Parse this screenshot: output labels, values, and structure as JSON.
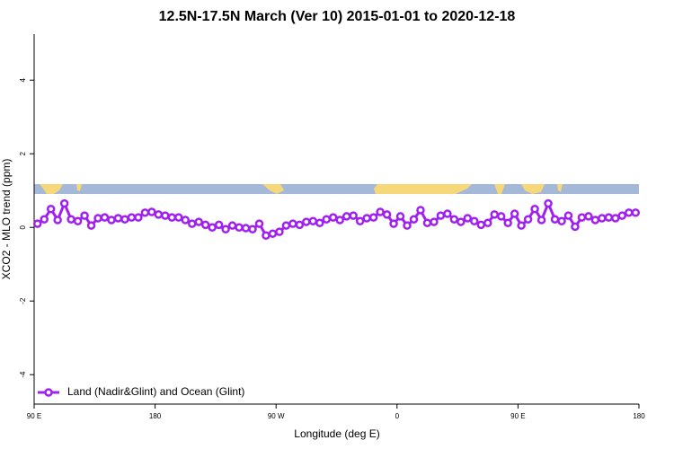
{
  "chart_data": {
    "type": "line",
    "title": "12.5N-17.5N March (Ver 10)   2015-01-01 to 2020-12-18",
    "x_label": "Longitude (deg E)",
    "y_label": "XCO2 - MLO trend (ppm)",
    "x": [
      92.5,
      97.5,
      102.5,
      107.5,
      112.5,
      117.5,
      122.5,
      127.5,
      132.5,
      137.5,
      142.5,
      147.5,
      152.5,
      157.5,
      162.5,
      167.5,
      172.5,
      177.5,
      182.5,
      187.5,
      192.5,
      197.5,
      202.5,
      207.5,
      212.5,
      217.5,
      222.5,
      227.5,
      232.5,
      237.5,
      242.5,
      247.5,
      252.5,
      257.5,
      262.5,
      267.5,
      272.5,
      277.5,
      282.5,
      287.5,
      292.5,
      297.5,
      302.5,
      307.5,
      312.5,
      317.5,
      322.5,
      327.5,
      332.5,
      337.5,
      342.5,
      347.5,
      352.5,
      357.5,
      362.5,
      367.5,
      372.5,
      377.5,
      382.5,
      387.5,
      392.5,
      397.5,
      402.5,
      407.5,
      412.5,
      417.5,
      422.5,
      427.5,
      432.5,
      437.5,
      442.5,
      447.5,
      452.5,
      457.5,
      462.5,
      467.5,
      472.5,
      477.5,
      482.5,
      487.5,
      492.5,
      497.5,
      502.5,
      507.5,
      512.5,
      517.5,
      522.5,
      527.5,
      532.5,
      537.5
    ],
    "series": [
      {
        "name": "Land (Nadir&Glint) and Ocean (Glint)",
        "color": "#a020f0",
        "values": [
          0.1,
          0.22,
          0.5,
          0.2,
          0.65,
          0.22,
          0.17,
          0.32,
          0.05,
          0.25,
          0.27,
          0.2,
          0.25,
          0.22,
          0.27,
          0.27,
          0.4,
          0.42,
          0.35,
          0.32,
          0.27,
          0.27,
          0.2,
          0.1,
          0.15,
          0.07,
          0,
          0.07,
          -0.05,
          0.05,
          0,
          -0.02,
          -0.05,
          0.1,
          -0.22,
          -0.17,
          -0.12,
          0.05,
          0.1,
          0.07,
          0.15,
          0.17,
          0.12,
          0.22,
          0.27,
          0.2,
          0.3,
          0.32,
          0.17,
          0.25,
          0.27,
          0.42,
          0.35,
          0.1,
          0.3,
          0.05,
          0.22,
          0.47,
          0.12,
          0.15,
          0.32,
          0.37,
          0.22,
          0.15,
          0.25,
          0.17,
          0.07,
          0.12,
          0.35,
          0.3,
          0.12,
          0.37,
          0.05,
          0.22,
          0.5,
          0.2,
          0.65,
          0.22,
          0.17,
          0.32,
          0.02,
          0.27,
          0.3,
          0.2,
          0.25,
          0.27,
          0.25,
          0.32,
          0.4,
          0.4
        ]
      }
    ],
    "xlim": [
      90,
      540
    ],
    "xticks": [
      {
        "value": 90,
        "label": "90 E"
      },
      180,
      {
        "value": 270,
        "label": "90 W"
      },
      {
        "value": 360,
        "label": "0"
      },
      {
        "value": 450,
        "label": "90 E"
      },
      {
        "value": 540,
        "label": "180"
      }
    ],
    "ylim": [
      -4.8,
      5.25
    ],
    "yticks": [
      -4,
      -2,
      0,
      2,
      4
    ],
    "legend": "bottomleft"
  }
}
